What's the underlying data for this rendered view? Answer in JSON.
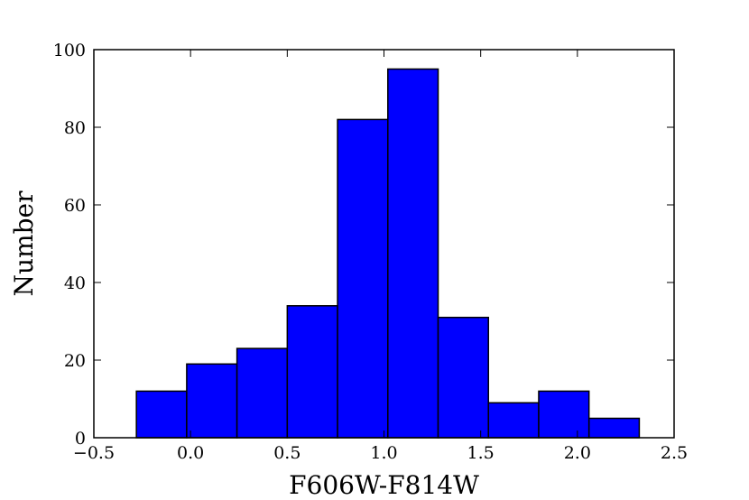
{
  "chart_data": {
    "type": "bar",
    "subtype": "histogram",
    "bin_edges": [
      -0.28,
      -0.02,
      0.24,
      0.5,
      0.76,
      1.02,
      1.28,
      1.54,
      1.8,
      2.06,
      2.32
    ],
    "values": [
      12,
      19,
      23,
      34,
      82,
      95,
      31,
      9,
      12,
      5
    ],
    "title": "",
    "xlabel": "F606W-F814W",
    "ylabel": "Number",
    "xlim": [
      -0.5,
      2.5
    ],
    "ylim": [
      0,
      100
    ],
    "xticks": [
      -0.5,
      0.0,
      0.5,
      1.0,
      1.5,
      2.0,
      2.5
    ],
    "xtick_labels": [
      "−0.5",
      "0.0",
      "0.5",
      "1.0",
      "1.5",
      "2.0",
      "2.5"
    ],
    "yticks": [
      0,
      20,
      40,
      60,
      80,
      100
    ],
    "ytick_labels": [
      "0",
      "20",
      "40",
      "60",
      "80",
      "100"
    ],
    "bar_color": "#0000ff",
    "edge_color": "#000000",
    "grid": false
  }
}
